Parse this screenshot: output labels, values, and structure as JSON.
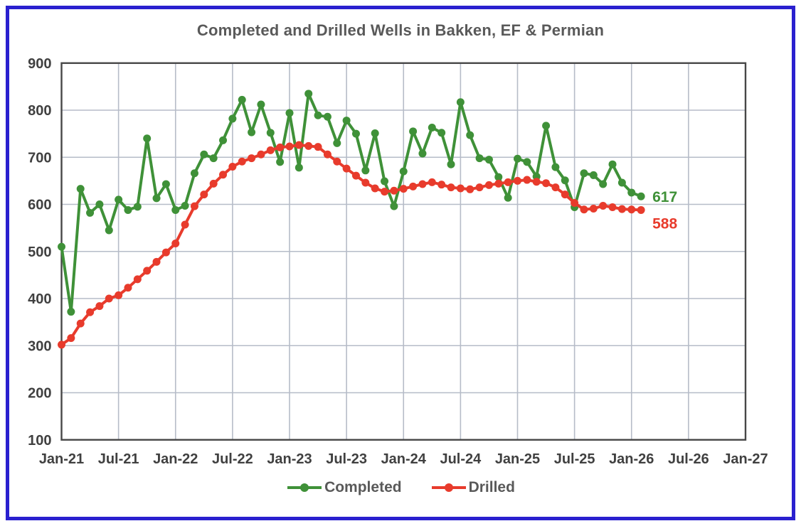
{
  "title": "Completed and Drilled Wells in Bakken, EF & Permian",
  "colors": {
    "frame_border": "#2a20cf",
    "title_text": "#595959",
    "axis_text": "#404040",
    "gridline": "#b6bcc8",
    "plot_border": "#474747",
    "completed": "#3f9138",
    "drilled": "#e83b2c"
  },
  "legend": {
    "items": [
      {
        "label": "Completed",
        "color": "#3f9138"
      },
      {
        "label": "Drilled",
        "color": "#e83b2c"
      }
    ]
  },
  "chart_data": {
    "type": "line",
    "title": "Completed and Drilled Wells in Bakken, EF & Permian",
    "x_start": "Jan-21",
    "x_end": "Feb-26",
    "x_interval": "monthly",
    "x_tick_labels": [
      "Jan-21",
      "Jul-21",
      "Jan-22",
      "Jul-22",
      "Jan-23",
      "Jul-23",
      "Jan-24",
      "Jul-24",
      "Jan-25",
      "Jul-25",
      "Jan-26",
      "Jul-26",
      "Jan-27"
    ],
    "y_tick_labels": [
      "100",
      "200",
      "300",
      "400",
      "500",
      "600",
      "700",
      "800",
      "900"
    ],
    "ylim": [
      100,
      900
    ],
    "xlim_months": [
      0,
      72
    ],
    "grid": "on",
    "legend_position": "bottom",
    "series": [
      {
        "name": "Completed",
        "color": "#3f9138",
        "end_label": "617",
        "values": [
          510,
          372,
          633,
          582,
          600,
          545,
          610,
          588,
          595,
          740,
          613,
          643,
          588,
          597,
          666,
          706,
          698,
          736,
          782,
          822,
          753,
          812,
          752,
          690,
          794,
          678,
          835,
          789,
          786,
          730,
          778,
          750,
          672,
          751,
          649,
          596,
          670,
          755,
          708,
          763,
          752,
          685,
          817,
          747,
          698,
          695,
          658,
          614,
          697,
          690,
          659,
          767,
          679,
          651,
          594,
          666,
          662,
          643,
          685,
          646,
          625,
          617
        ]
      },
      {
        "name": "Drilled",
        "color": "#e83b2c",
        "end_label": "588",
        "values": [
          302,
          316,
          347,
          371,
          384,
          400,
          407,
          423,
          441,
          459,
          478,
          498,
          517,
          557,
          596,
          621,
          644,
          663,
          680,
          691,
          698,
          706,
          715,
          721,
          723,
          726,
          724,
          722,
          706,
          691,
          676,
          661,
          646,
          634,
          627,
          629,
          633,
          638,
          643,
          647,
          642,
          636,
          634,
          632,
          636,
          641,
          644,
          647,
          650,
          652,
          648,
          645,
          636,
          621,
          603,
          589,
          591,
          597,
          594,
          590,
          589,
          588
        ]
      }
    ]
  }
}
